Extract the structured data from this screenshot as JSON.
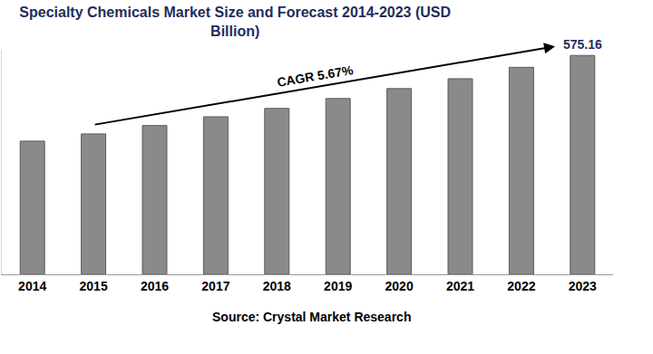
{
  "chart_data": {
    "type": "bar",
    "title": "Specialty Chemicals Market Size and Forecast 2014-2023 (USD\nBillion)",
    "source": "Source: Crystal Market Research",
    "categories": [
      "2014",
      "2015",
      "2016",
      "2017",
      "2018",
      "2019",
      "2020",
      "2021",
      "2022",
      "2023"
    ],
    "values": [
      350,
      369,
      391,
      414,
      436,
      462,
      488,
      514,
      544,
      575.16
    ],
    "color": "#8a8a8a",
    "ylim": [
      0,
      590
    ],
    "grid": false,
    "tick_labels": "x",
    "data_labels": false,
    "annotations": [
      {
        "text": "CAGR 5.67%",
        "from": "2015",
        "to": "2023",
        "arrow": true
      },
      {
        "text": "575.16",
        "at": "2023"
      }
    ]
  }
}
